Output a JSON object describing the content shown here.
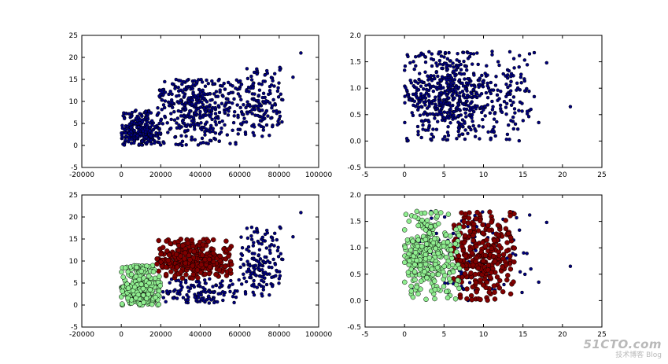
{
  "figure": {
    "watermark": {
      "logo": "51CTO.com",
      "subtitle": "技术博客 Blog"
    },
    "colors": {
      "dark": "#000080",
      "red": "#800000",
      "green": "#90ee90",
      "edge": "#000000"
    }
  },
  "chart_data": [
    {
      "type": "scatter",
      "title": "",
      "xlabel": "",
      "ylabel": "",
      "xlim": [
        -20000,
        100000
      ],
      "ylim": [
        -5,
        25
      ],
      "xticks": [
        "-20000",
        "0",
        "20000",
        "40000",
        "60000",
        "80000",
        "100000"
      ],
      "yticks": [
        "-5",
        "0",
        "5",
        "10",
        "15",
        "20",
        "25"
      ],
      "clusters": [
        {
          "color": "dark",
          "n": 260,
          "xr": [
            0,
            20000
          ],
          "yr": [
            0,
            8
          ],
          "xc": 10000,
          "yc": 3
        },
        {
          "color": "dark",
          "n": 380,
          "xr": [
            18000,
            62000
          ],
          "yr": [
            0,
            15
          ],
          "xc": 38000,
          "yc": 10
        },
        {
          "color": "dark",
          "n": 150,
          "xr": [
            60000,
            82000
          ],
          "yr": [
            2,
            18
          ],
          "xc": 70000,
          "yc": 9
        }
      ],
      "outliers": [
        [
          91000,
          21
        ],
        [
          87000,
          15.5
        ],
        [
          80000,
          6
        ]
      ]
    },
    {
      "type": "scatter",
      "title": "",
      "xlabel": "",
      "ylabel": "",
      "xlim": [
        -5,
        25
      ],
      "ylim": [
        -0.5,
        2.0
      ],
      "xticks": [
        "-5",
        "0",
        "5",
        "10",
        "15",
        "20",
        "25"
      ],
      "yticks": [
        "-0.5",
        "0.0",
        "0.5",
        "1.0",
        "1.5",
        "2.0"
      ],
      "clusters": [
        {
          "color": "dark",
          "n": 600,
          "xr": [
            0,
            14
          ],
          "yr": [
            0,
            1.7
          ],
          "xc": 6,
          "yc": 0.85
        },
        {
          "color": "dark",
          "n": 40,
          "xr": [
            13,
            17
          ],
          "yr": [
            0,
            1.7
          ],
          "xc": 14.5,
          "yc": 0.8
        }
      ],
      "outliers": [
        [
          21,
          0.65
        ],
        [
          18,
          1.48
        ],
        [
          17,
          0.35
        ],
        [
          16,
          0.6
        ]
      ]
    },
    {
      "type": "scatter",
      "title": "",
      "xlabel": "",
      "ylabel": "",
      "xlim": [
        -20000,
        100000
      ],
      "ylim": [
        -5,
        25
      ],
      "xticks": [
        "-20000",
        "0",
        "20000",
        "40000",
        "60000",
        "80000",
        "100000"
      ],
      "yticks": [
        "-5",
        "0",
        "5",
        "10",
        "15",
        "20",
        "25"
      ],
      "clusters": [
        {
          "color": "green",
          "n": 320,
          "xr": [
            0,
            20000
          ],
          "yr": [
            0,
            9
          ],
          "xc": 10000,
          "yc": 3
        },
        {
          "color": "red",
          "n": 320,
          "xr": [
            18000,
            56000
          ],
          "yr": [
            6,
            15
          ],
          "xc": 38000,
          "yc": 10
        },
        {
          "color": "dark",
          "n": 120,
          "xr": [
            20000,
            60000
          ],
          "yr": [
            0,
            6
          ],
          "xc": 40000,
          "yc": 3
        },
        {
          "color": "dark",
          "n": 150,
          "xr": [
            60000,
            82000
          ],
          "yr": [
            2,
            18
          ],
          "xc": 70000,
          "yc": 9
        }
      ],
      "outliers": [
        [
          91000,
          21
        ],
        [
          87000,
          15.5
        ],
        [
          80000,
          6
        ]
      ]
    },
    {
      "type": "scatter",
      "title": "",
      "xlabel": "",
      "ylabel": "",
      "xlim": [
        -5,
        25
      ],
      "ylim": [
        -0.5,
        2.0
      ],
      "xticks": [
        "-5",
        "0",
        "5",
        "10",
        "15",
        "20",
        "25"
      ],
      "yticks": [
        "-0.5",
        "0.0",
        "0.5",
        "1.0",
        "1.5",
        "2.0"
      ],
      "clusters": [
        {
          "color": "green",
          "n": 300,
          "xr": [
            0,
            7
          ],
          "yr": [
            0,
            1.7
          ],
          "xc": 3,
          "yc": 0.85
        },
        {
          "color": "red",
          "n": 280,
          "xr": [
            6,
            14
          ],
          "yr": [
            0,
            1.7
          ],
          "xc": 10,
          "yc": 0.85
        },
        {
          "color": "dark",
          "n": 120,
          "xr": [
            0,
            16
          ],
          "yr": [
            0,
            1.7
          ],
          "xc": 8,
          "yc": 0.85
        }
      ],
      "outliers": [
        [
          21,
          0.65
        ],
        [
          18,
          1.48
        ],
        [
          17,
          0.35
        ],
        [
          16,
          0.6
        ]
      ]
    }
  ]
}
